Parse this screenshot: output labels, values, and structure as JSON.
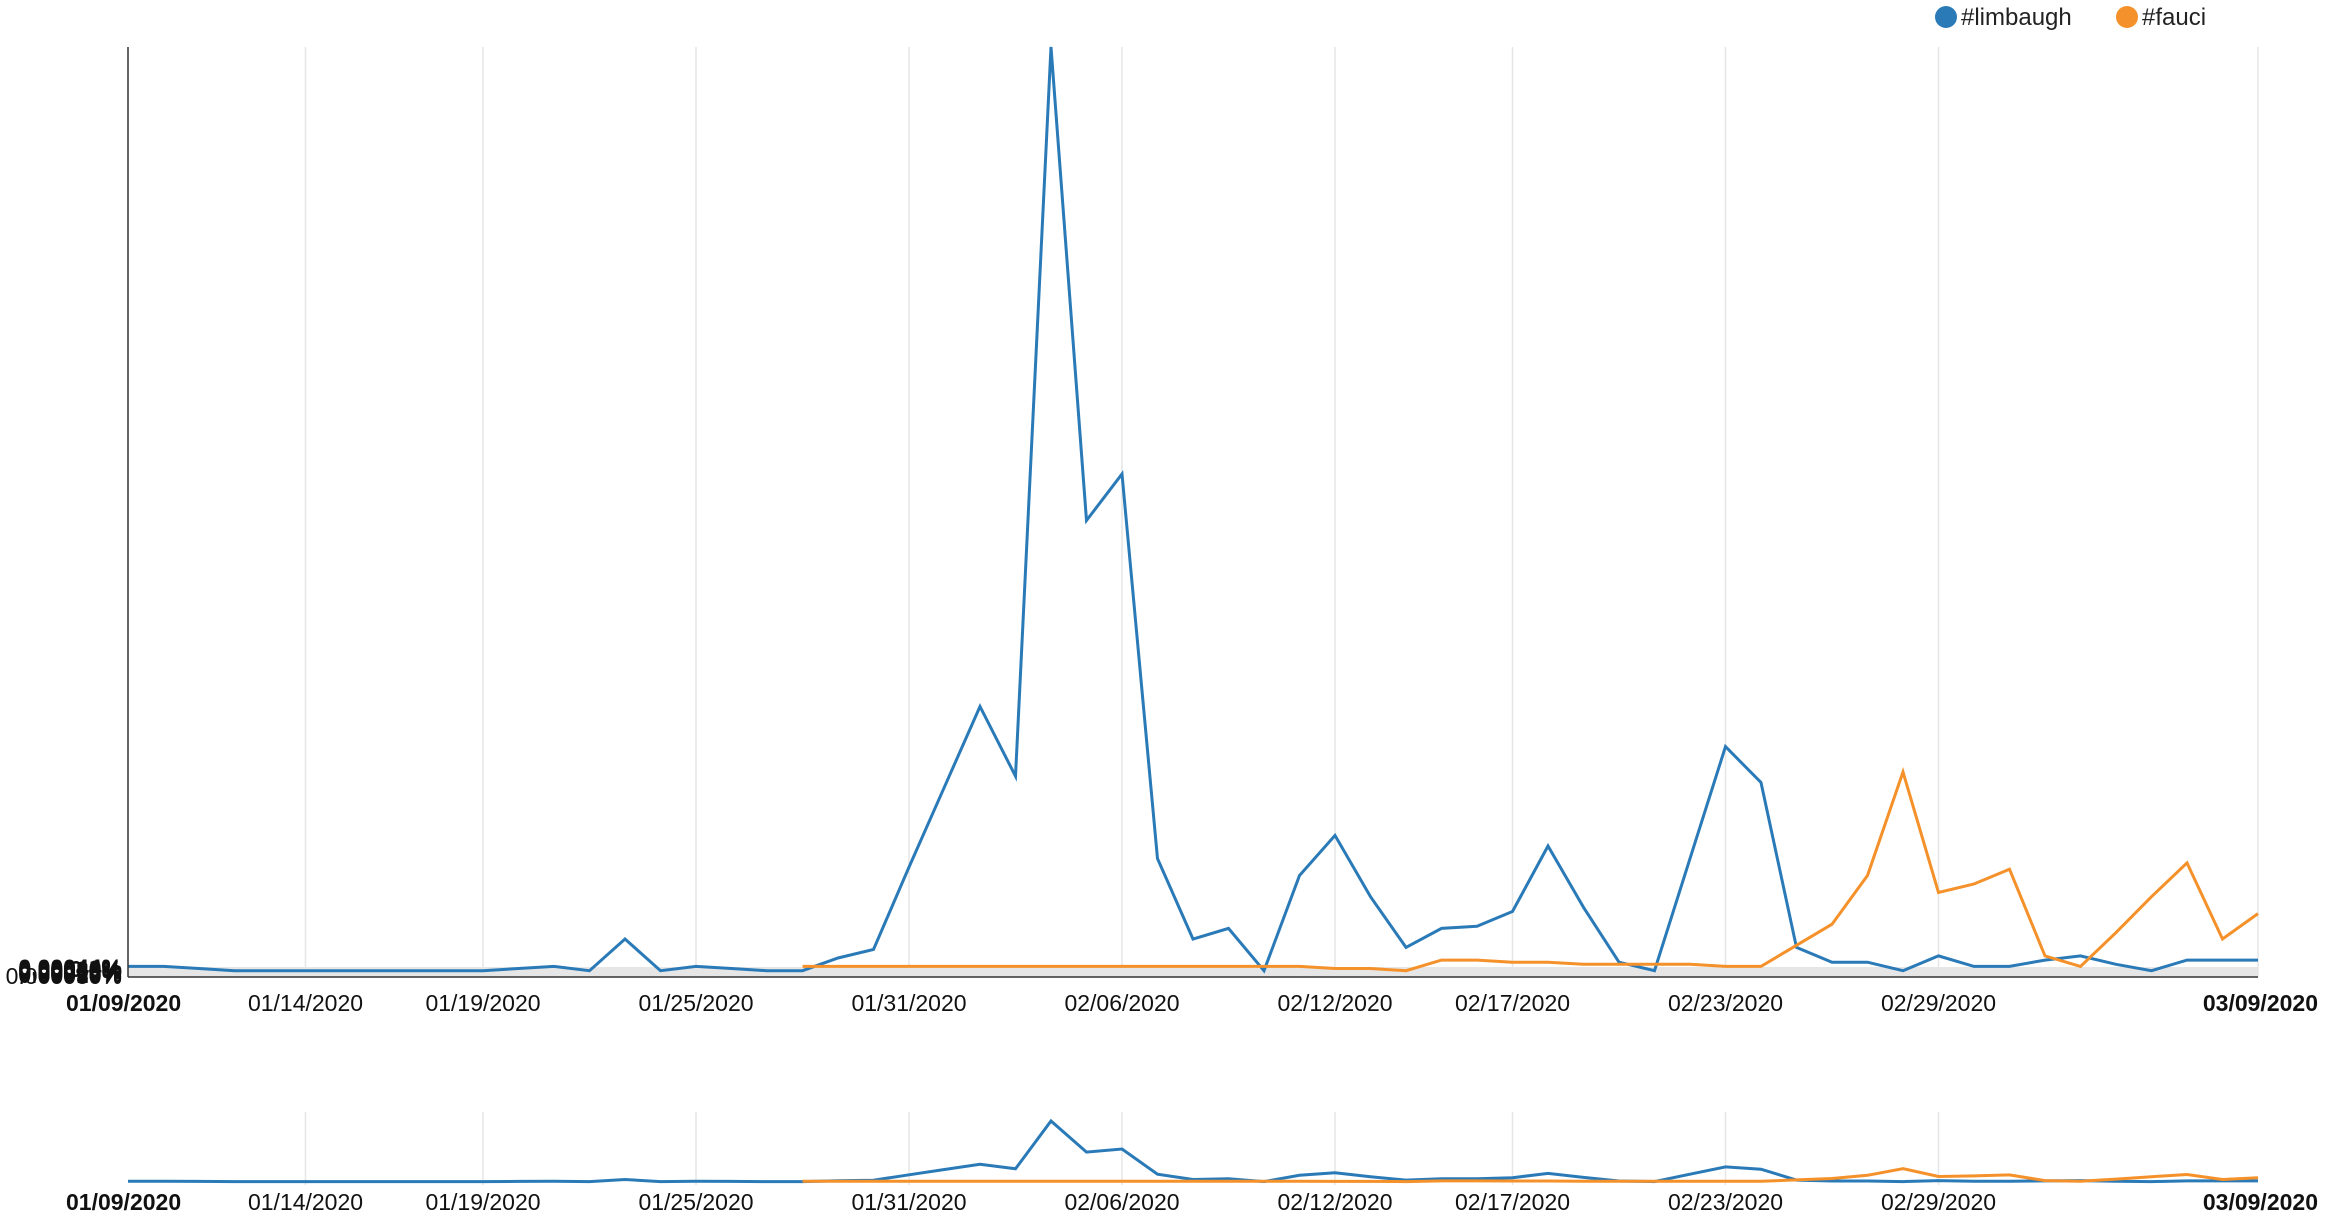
{
  "chart_data": [
    {
      "type": "line",
      "panel": "main",
      "x": [
        "01/09/2020",
        "01/10/2020",
        "01/11/2020",
        "01/12/2020",
        "01/13/2020",
        "01/14/2020",
        "01/15/2020",
        "01/16/2020",
        "01/17/2020",
        "01/18/2020",
        "01/19/2020",
        "01/20/2020",
        "01/21/2020",
        "01/22/2020",
        "01/23/2020",
        "01/24/2020",
        "01/25/2020",
        "01/26/2020",
        "01/27/2020",
        "01/28/2020",
        "01/29/2020",
        "01/30/2020",
        "01/31/2020",
        "02/01/2020",
        "02/02/2020",
        "02/03/2020",
        "02/04/2020",
        "02/05/2020",
        "02/06/2020",
        "02/07/2020",
        "02/08/2020",
        "02/09/2020",
        "02/10/2020",
        "02/11/2020",
        "02/12/2020",
        "02/13/2020",
        "02/14/2020",
        "02/15/2020",
        "02/16/2020",
        "02/17/2020",
        "02/18/2020",
        "02/19/2020",
        "02/20/2020",
        "02/21/2020",
        "02/22/2020",
        "02/23/2020",
        "02/24/2020",
        "02/25/2020",
        "02/26/2020",
        "02/27/2020",
        "02/28/2020",
        "02/29/2020",
        "03/01/2020",
        "03/02/2020",
        "03/03/2020",
        "03/04/2020",
        "03/05/2020",
        "03/06/2020",
        "03/07/2020",
        "03/08/2020",
        "03/09/2020"
      ],
      "series": [
        {
          "name": "#limbaugh",
          "color": "#2a7ab8",
          "values": [
            5e-06,
            5e-06,
            4e-06,
            3e-06,
            3e-06,
            3e-06,
            3e-06,
            3e-06,
            3e-06,
            3e-06,
            3e-06,
            4e-06,
            5e-06,
            3e-06,
            1.8e-05,
            3e-06,
            5e-06,
            4e-06,
            3e-06,
            3e-06,
            9e-06,
            1.3e-05,
            5.2e-05,
            9e-05,
            0.000128,
            9.5e-05,
            0.00044,
            0.000216,
            0.000238,
            5.6e-05,
            1.8e-05,
            2.3e-05,
            3e-06,
            4.8e-05,
            6.7e-05,
            3.8e-05,
            1.4e-05,
            2.3e-05,
            2.4e-05,
            3.1e-05,
            6.2e-05,
            3.3e-05,
            7e-06,
            3e-06,
            5.6e-05,
            0.000109,
            9.2e-05,
            1.4e-05,
            7e-06,
            7e-06,
            3e-06,
            1e-05,
            5e-06,
            5e-06,
            8e-06,
            1e-05,
            6e-06,
            3e-06,
            8e-06,
            8e-06,
            8e-06
          ]
        },
        {
          "name": "#fauci",
          "color": "#f5912a",
          "values": [
            null,
            null,
            null,
            null,
            null,
            null,
            null,
            null,
            null,
            null,
            null,
            null,
            null,
            null,
            null,
            null,
            null,
            null,
            null,
            5e-06,
            5e-06,
            5e-06,
            5e-06,
            5e-06,
            5e-06,
            5e-06,
            5e-06,
            5e-06,
            5e-06,
            5e-06,
            5e-06,
            5e-06,
            5e-06,
            5e-06,
            4e-06,
            4e-06,
            3e-06,
            8e-06,
            8e-06,
            7e-06,
            7e-06,
            6e-06,
            6e-06,
            6e-06,
            6e-06,
            5e-06,
            5e-06,
            1.5e-05,
            2.5e-05,
            4.8e-05,
            9.7e-05,
            4e-05,
            4.4e-05,
            5.1e-05,
            1e-05,
            5e-06,
            2.1e-05,
            3.8e-05,
            5.4e-05,
            1.8e-05,
            3e-05
          ]
        }
      ],
      "ylim": [
        0,
        0.00044
      ],
      "y_ticks": [
        "0.0%",
        "0.000050%",
        "0.00010%",
        "0.00015%",
        "0.00020%",
        "0.00025%",
        "0.00030%",
        "0.00035%",
        "0.00040%",
        "0.00044%"
      ],
      "x_ticks": [
        "01/09/2020",
        "01/14/2020",
        "01/19/2020",
        "01/25/2020",
        "01/31/2020",
        "02/06/2020",
        "02/12/2020",
        "02/17/2020",
        "02/23/2020",
        "02/29/2020",
        "03/09/2020"
      ],
      "grid": true,
      "legend": "top-right"
    },
    {
      "type": "line",
      "panel": "overview",
      "x_ticks": [
        "01/09/2020",
        "01/14/2020",
        "01/19/2020",
        "01/25/2020",
        "01/31/2020",
        "02/06/2020",
        "02/12/2020",
        "02/17/2020",
        "02/23/2020",
        "02/29/2020",
        "03/09/2020"
      ],
      "grid": true
    }
  ],
  "legend": [
    {
      "label": "#limbaugh",
      "color": "#2a7ab8"
    },
    {
      "label": "#fauci",
      "color": "#f5912a"
    }
  ],
  "colors": {
    "grid": "#e6e6e6",
    "axis": "#333333",
    "text": "#111111"
  }
}
